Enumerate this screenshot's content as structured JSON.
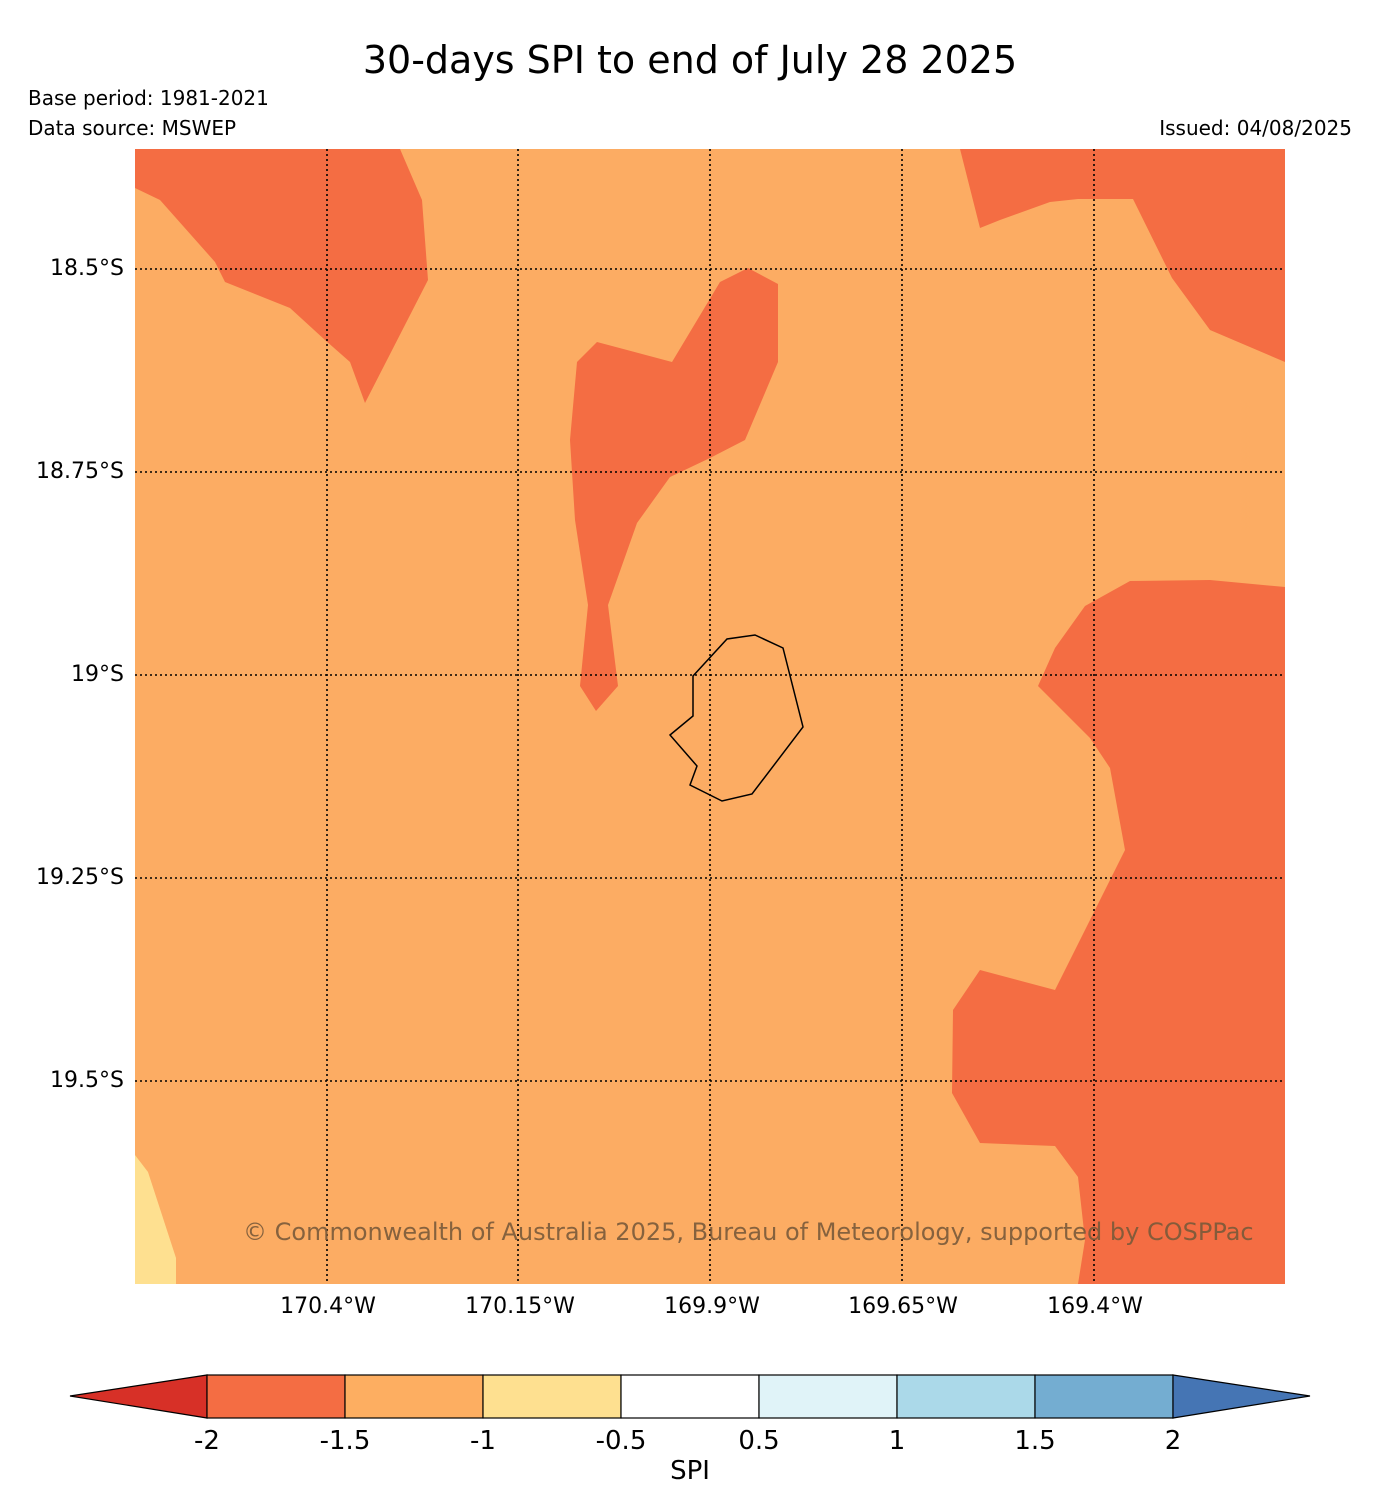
{
  "title": "30-days SPI to end of July 28 2025",
  "base_period": "Base period: 1981-2021",
  "data_source": "Data source: MSWEP",
  "issued": "Issued: 04/08/2025",
  "copyright": "© Commonwealth of Australia 2025, Bureau of Meteorology, supported by COSPPac",
  "map": {
    "lat_ticks": [
      "18.5°S",
      "18.75°S",
      "19°S",
      "19.25°S",
      "19.5°S"
    ],
    "lon_ticks": [
      "170.4°W",
      "170.15°W",
      "169.9°W",
      "169.65°W",
      "169.4°W"
    ],
    "background_class_color": "#fcac63",
    "region_colors": {
      "spi_-1.5_to_-1": "#fcac63",
      "spi_-2_to_-1.5": "#f46d43",
      "spi_-1_to_-0.5": "#fee090"
    }
  },
  "colorbar": {
    "label": "SPI",
    "ticks": [
      "-2",
      "-1.5",
      "-1",
      "-0.5",
      "0.5",
      "1",
      "1.5",
      "2"
    ],
    "colors": [
      "#d73027",
      "#f46d43",
      "#fdae61",
      "#fee090",
      "#ffffff",
      "#e0f3f8",
      "#abd9e9",
      "#74add1",
      "#4575b4"
    ]
  }
}
